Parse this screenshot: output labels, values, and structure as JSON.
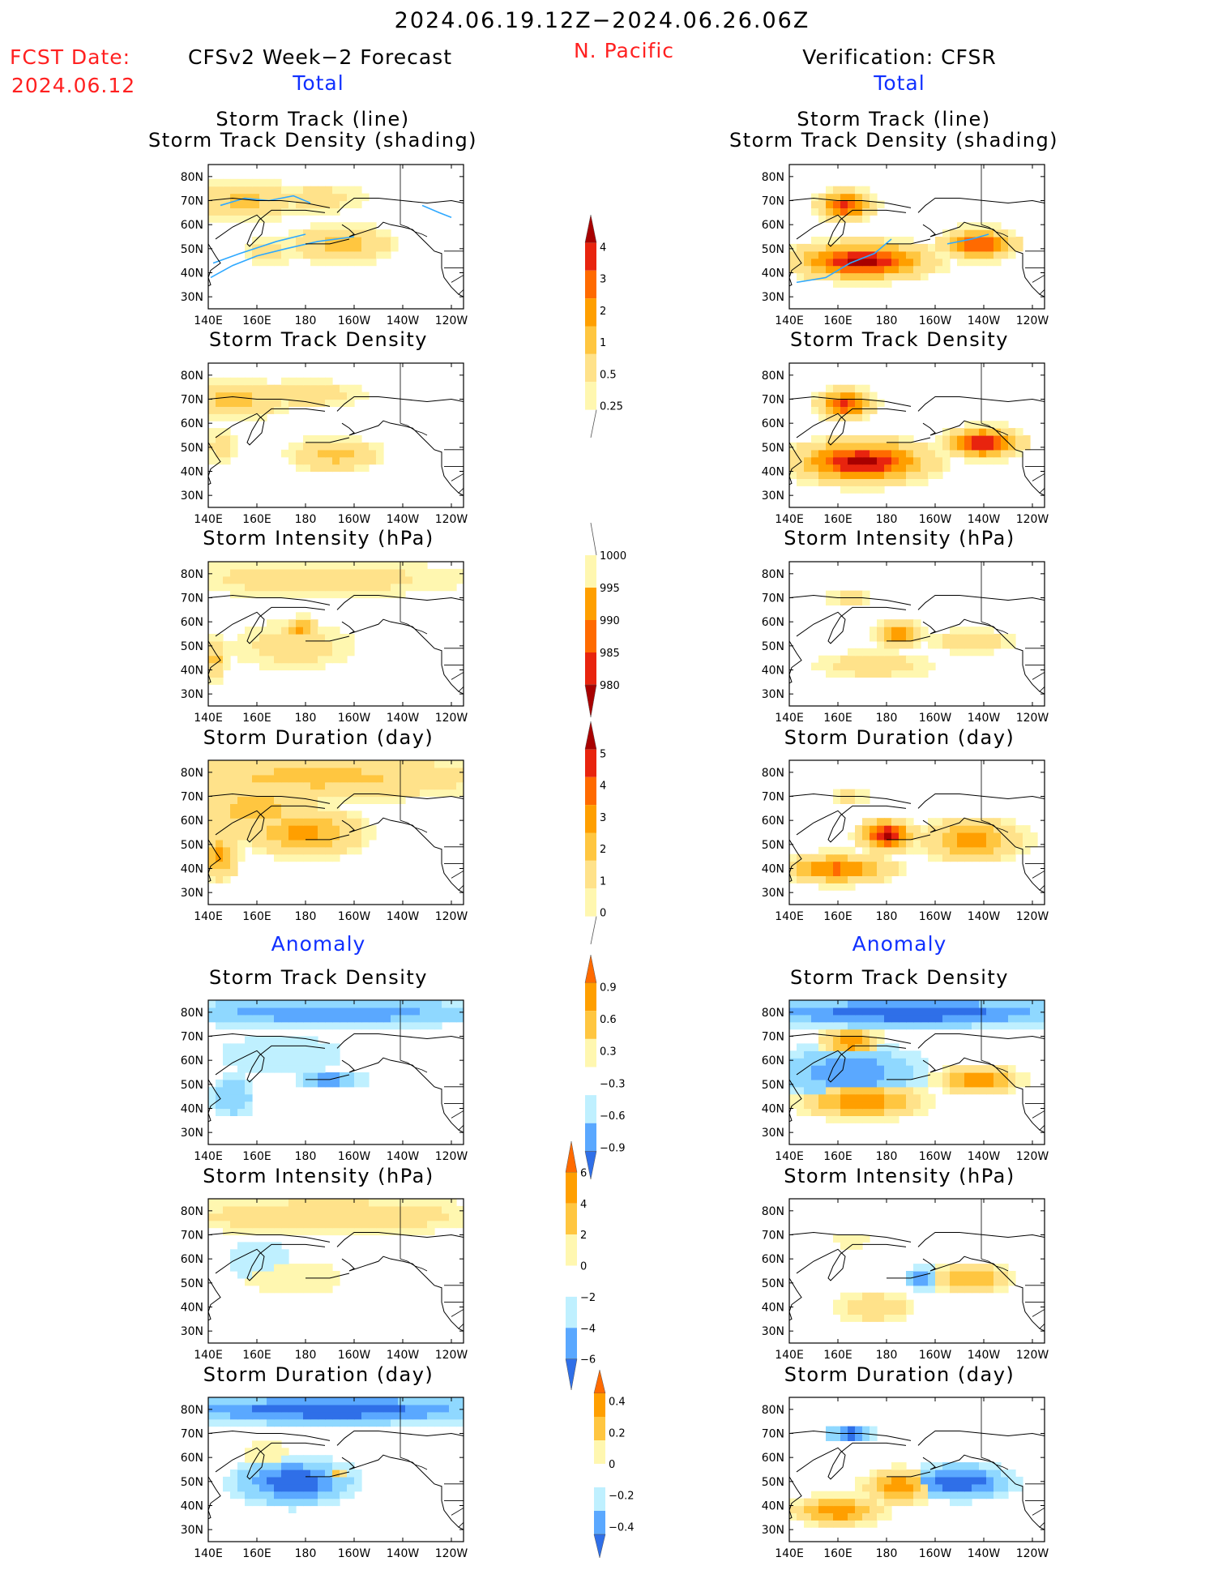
{
  "header": {
    "period": "2024.06.19.12Z−2024.06.26.06Z",
    "region": "N. Pacific",
    "fcst_label": "FCST Date:",
    "fcst_date": "2024.06.12",
    "left_title": "CFSv2 Week−2 Forecast",
    "right_title": "Verification: CFSR",
    "total_label": "Total",
    "anomaly_label": "Anomaly"
  },
  "axes": {
    "lat_ticks": [
      "80N",
      "70N",
      "60N",
      "50N",
      "40N",
      "30N"
    ],
    "lon_ticks": [
      "140E",
      "160E",
      "180",
      "160W",
      "140W",
      "120W"
    ]
  },
  "colors": {
    "pos": [
      "#fff7b0",
      "#ffe28a",
      "#ffc640",
      "#ff9f00",
      "#ff6a00",
      "#e8240e",
      "#a80000"
    ],
    "neg": [
      "#bff0ff",
      "#8fd8ff",
      "#5aa8ff",
      "#2f6fe8",
      "#1a52c8"
    ],
    "track_line": "#2ea8ff"
  },
  "panels": [
    {
      "id": "f_track",
      "title1": "Storm Track (line)",
      "title2": "Storm Track Density (shading)"
    },
    {
      "id": "f_dens",
      "title1": "Storm Track Density"
    },
    {
      "id": "f_int",
      "title1": "Storm Intensity (hPa)"
    },
    {
      "id": "f_dur",
      "title1": "Storm Duration (day)"
    },
    {
      "id": "f_adens",
      "title1": "Storm Track Density"
    },
    {
      "id": "f_aint",
      "title1": "Storm Intensity (hPa)"
    },
    {
      "id": "f_adur",
      "title1": "Storm Duration (day)"
    },
    {
      "id": "v_track",
      "title1": "Storm Track (line)",
      "title2": "Storm Track Density (shading)"
    },
    {
      "id": "v_dens",
      "title1": "Storm Track Density"
    },
    {
      "id": "v_int",
      "title1": "Storm Intensity (hPa)"
    },
    {
      "id": "v_dur",
      "title1": "Storm Duration (day)"
    },
    {
      "id": "v_adens",
      "title1": "Storm Track Density"
    },
    {
      "id": "v_aint",
      "title1": "Storm Intensity (hPa)"
    },
    {
      "id": "v_adur",
      "title1": "Storm Duration (day)"
    }
  ],
  "colorbars": [
    {
      "id": "cb_density",
      "labels": [
        "4",
        "3",
        "2",
        "1",
        "0.5",
        "0.25"
      ]
    },
    {
      "id": "cb_intensity",
      "labels": [
        "1000",
        "995",
        "990",
        "985",
        "980"
      ]
    },
    {
      "id": "cb_duration",
      "labels": [
        "5",
        "4",
        "3",
        "2",
        "1",
        "0"
      ]
    },
    {
      "id": "cb_adens",
      "labels": [
        "0.9",
        "0.6",
        "0.3",
        "−0.3",
        "−0.6",
        "−0.9"
      ]
    },
    {
      "id": "cb_aint",
      "labels": [
        "6",
        "4",
        "2",
        "0",
        "−2",
        "−4",
        "−6"
      ]
    },
    {
      "id": "cb_adur",
      "labels": [
        "0.4",
        "0.2",
        "0",
        "−0.2",
        "−0.4"
      ]
    }
  ],
  "chart_data": {
    "type": "heatmap",
    "domain": {
      "lon_range_deg_east": [
        140,
        245
      ],
      "lat_range": [
        25,
        85
      ]
    },
    "shading_levels": {
      "density": [
        0.25,
        0.5,
        1,
        2,
        3,
        4
      ],
      "intensity_hPa": [
        1000,
        995,
        990,
        985,
        980
      ],
      "duration_day": [
        0,
        1,
        2,
        3,
        4,
        5
      ],
      "density_anomaly": [
        -0.9,
        -0.6,
        -0.3,
        0.3,
        0.6,
        0.9
      ],
      "intensity_anomaly_hPa": [
        -6,
        -4,
        -2,
        0,
        2,
        4,
        6
      ],
      "duration_anomaly_day": [
        -0.4,
        -0.2,
        0,
        0.2,
        0.4
      ]
    },
    "fields": [
      {
        "id": "f_track",
        "blobs": [
          [
            155,
            70,
            18,
            7,
            2
          ],
          [
            185,
            71,
            20,
            6,
            1
          ],
          [
            195,
            52,
            18,
            7,
            2
          ],
          [
            165,
            49,
            10,
            6,
            1
          ]
        ],
        "tracks": [
          [
            [
              141,
              38
            ],
            [
              150,
              43
            ],
            [
              160,
              47
            ],
            [
              172,
              50
            ],
            [
              185,
              53
            ],
            [
              200,
              55
            ]
          ],
          [
            [
              145,
              68
            ],
            [
              155,
              71
            ],
            [
              165,
              70
            ],
            [
              175,
              72
            ],
            [
              182,
              69
            ]
          ],
          [
            [
              142,
              44
            ],
            [
              153,
              48
            ],
            [
              168,
              53
            ],
            [
              180,
              56
            ]
          ],
          [
            [
              228,
              68
            ],
            [
              235,
              65
            ],
            [
              240,
              63
            ]
          ]
        ]
      },
      {
        "id": "f_dens",
        "blobs": [
          [
            150,
            70,
            20,
            7,
            2
          ],
          [
            180,
            72,
            25,
            6,
            1
          ],
          [
            192,
            47,
            16,
            6,
            2
          ],
          [
            145,
            50,
            6,
            8,
            1
          ]
        ],
        "tracks": []
      },
      {
        "id": "f_int",
        "blobs": [
          [
            185,
            78,
            60,
            8,
            1
          ],
          [
            175,
            50,
            25,
            10,
            1
          ],
          [
            178,
            57,
            6,
            4,
            3
          ],
          [
            143,
            45,
            4,
            8,
            2
          ]
        ],
        "tracks": []
      },
      {
        "id": "f_dur",
        "blobs": [
          [
            185,
            78,
            60,
            8,
            2
          ],
          [
            160,
            65,
            25,
            12,
            2
          ],
          [
            180,
            55,
            20,
            8,
            3
          ],
          [
            145,
            45,
            6,
            8,
            3
          ]
        ],
        "tracks": []
      },
      {
        "id": "v_track",
        "blobs": [
          [
            163,
            68,
            9,
            5,
            5
          ],
          [
            170,
            45,
            22,
            6,
            6
          ],
          [
            218,
            52,
            12,
            5,
            5
          ]
        ],
        "tracks": [
          [
            [
              143,
              36
            ],
            [
              155,
              38
            ],
            [
              165,
              44
            ],
            [
              175,
              48
            ],
            [
              182,
              54
            ]
          ],
          [
            [
              205,
              52
            ],
            [
              215,
              54
            ],
            [
              222,
              56
            ]
          ]
        ]
      },
      {
        "id": "v_dens",
        "blobs": [
          [
            163,
            68,
            9,
            5,
            5
          ],
          [
            170,
            44,
            22,
            7,
            6
          ],
          [
            220,
            52,
            12,
            5,
            6
          ]
        ],
        "tracks": []
      },
      {
        "id": "v_int",
        "blobs": [
          [
            165,
            70,
            9,
            4,
            1
          ],
          [
            185,
            55,
            8,
            4,
            4
          ],
          [
            175,
            42,
            25,
            6,
            1
          ],
          [
            215,
            52,
            18,
            5,
            1
          ]
        ],
        "tracks": []
      },
      {
        "id": "v_dur",
        "blobs": [
          [
            165,
            70,
            8,
            3,
            1
          ],
          [
            160,
            40,
            18,
            5,
            4
          ],
          [
            180,
            54,
            9,
            5,
            6
          ],
          [
            215,
            52,
            18,
            7,
            3
          ]
        ],
        "tracks": []
      },
      {
        "id": "f_adens",
        "blobs": [
          [
            190,
            80,
            60,
            5,
            -3
          ],
          [
            170,
            62,
            30,
            10,
            -1
          ],
          [
            190,
            52,
            12,
            3,
            -3
          ],
          [
            150,
            45,
            8,
            8,
            -2
          ]
        ],
        "tracks": []
      },
      {
        "id": "f_aint",
        "blobs": [
          [
            190,
            78,
            60,
            7,
            2
          ],
          [
            175,
            52,
            25,
            8,
            1
          ],
          [
            160,
            60,
            15,
            10,
            -1
          ]
        ],
        "tracks": []
      },
      {
        "id": "f_adur",
        "blobs": [
          [
            190,
            80,
            60,
            5,
            -4
          ],
          [
            175,
            50,
            20,
            8,
            -4
          ],
          [
            165,
            60,
            12,
            8,
            1
          ],
          [
            193,
            53,
            4,
            3,
            3
          ]
        ],
        "tracks": []
      },
      {
        "id": "v_adens",
        "blobs": [
          [
            190,
            80,
            60,
            5,
            -4
          ],
          [
            165,
            68,
            10,
            5,
            4
          ],
          [
            170,
            43,
            22,
            6,
            4
          ],
          [
            218,
            52,
            14,
            5,
            4
          ],
          [
            165,
            55,
            25,
            10,
            -3
          ]
        ],
        "tracks": []
      },
      {
        "id": "v_aint",
        "blobs": [
          [
            165,
            68,
            9,
            4,
            1
          ],
          [
            195,
            52,
            6,
            4,
            -3
          ],
          [
            175,
            40,
            15,
            6,
            2
          ],
          [
            215,
            52,
            14,
            5,
            3
          ]
        ],
        "tracks": []
      },
      {
        "id": "v_adur",
        "blobs": [
          [
            165,
            70,
            8,
            3,
            -4
          ],
          [
            160,
            38,
            16,
            5,
            4
          ],
          [
            185,
            48,
            12,
            6,
            4
          ],
          [
            210,
            50,
            18,
            6,
            -4
          ]
        ],
        "tracks": []
      }
    ]
  }
}
